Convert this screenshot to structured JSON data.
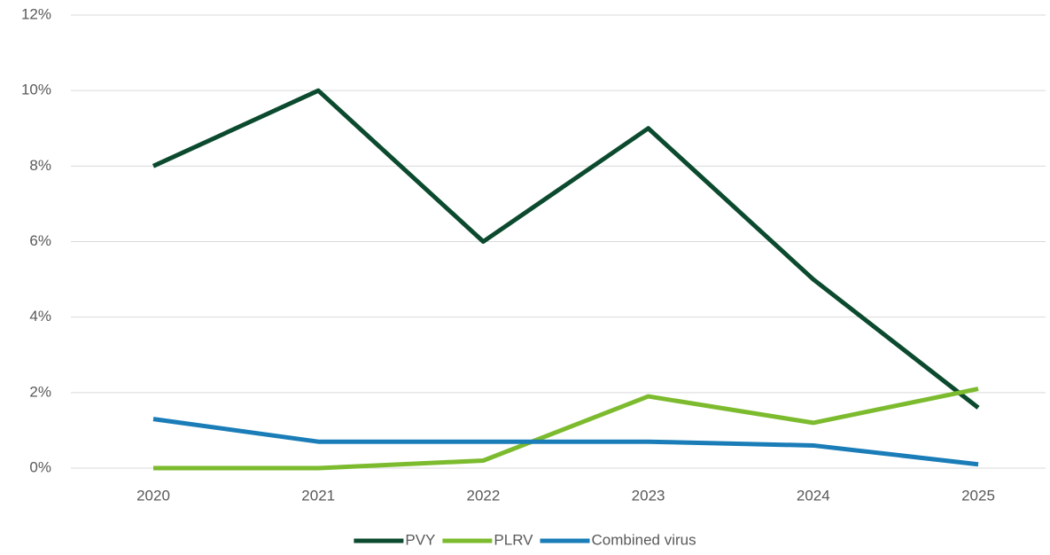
{
  "chart_data": {
    "type": "line",
    "categories": [
      "2020",
      "2021",
      "2022",
      "2023",
      "2024",
      "2025"
    ],
    "series": [
      {
        "name": "PVY",
        "color": "#0b4a2e",
        "values": [
          8,
          10,
          6,
          9,
          5,
          1.6
        ]
      },
      {
        "name": "PLRV",
        "color": "#7cbb2e",
        "values": [
          0,
          0,
          0.2,
          1.9,
          1.2,
          2.1
        ]
      },
      {
        "name": "Combined virus",
        "color": "#1a7db8",
        "values": [
          1.3,
          0.7,
          0.7,
          0.7,
          0.6,
          0.1
        ]
      }
    ],
    "ylim": [
      0,
      12
    ],
    "yticks": [
      {
        "value": 0,
        "label": "0%"
      },
      {
        "value": 2,
        "label": "2%"
      },
      {
        "value": 4,
        "label": "4%"
      },
      {
        "value": 6,
        "label": "6%"
      },
      {
        "value": 8,
        "label": "8%"
      },
      {
        "value": 10,
        "label": "10%"
      },
      {
        "value": 12,
        "label": "12%"
      }
    ],
    "grid": true,
    "legend": "bottom"
  }
}
